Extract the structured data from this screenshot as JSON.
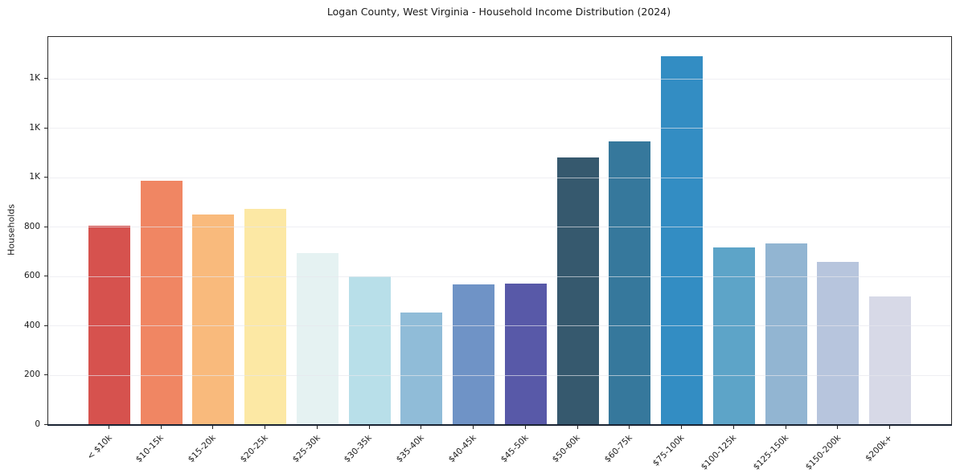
{
  "chart_data": {
    "type": "bar",
    "title": "Logan County, West Virginia - Household Income Distribution (2024)",
    "ylabel": "Households",
    "xlabel": "",
    "categories": [
      "< $10k",
      "$10-15k",
      "$15-20k",
      "$20-25k",
      "$25-30k",
      "$30-35k",
      "$35-40k",
      "$40-45k",
      "$45-50k",
      "$50-60k",
      "$60-75k",
      "$75-100k",
      "$100-125k",
      "$125-150k",
      "$150-200k",
      "$200k+"
    ],
    "values": [
      806,
      987,
      851,
      876,
      696,
      601,
      456,
      568,
      573,
      1083,
      1148,
      1492,
      718,
      736,
      659,
      521
    ],
    "bar_colors": [
      "#d6524e",
      "#f08663",
      "#f9ba7c",
      "#fce8a4",
      "#e5f2f2",
      "#b8dfe9",
      "#90bcd8",
      "#6f93c6",
      "#5859a8",
      "#36596e",
      "#36789c",
      "#338dc3",
      "#5da4c8",
      "#92b5d2",
      "#b7c5dd",
      "#d7d9e7"
    ],
    "ylim": [
      0,
      1570
    ],
    "yticks": [
      {
        "value": 0,
        "label": "0"
      },
      {
        "value": 200,
        "label": "200"
      },
      {
        "value": 400,
        "label": "400"
      },
      {
        "value": 600,
        "label": "600"
      },
      {
        "value": 800,
        "label": "800"
      },
      {
        "value": 1000,
        "label": "1K"
      },
      {
        "value": 1200,
        "label": "1K"
      },
      {
        "value": 1400,
        "label": "1K"
      }
    ],
    "grid": true,
    "legend": null
  },
  "style": {
    "background": "#ffffff",
    "grid_color": "rgba(230,230,236,0.65)",
    "spine_color": "#2a2a2a",
    "baseline_color": "#1a2433",
    "tick_color": "#222222",
    "text_color": "#1a1a1a"
  }
}
